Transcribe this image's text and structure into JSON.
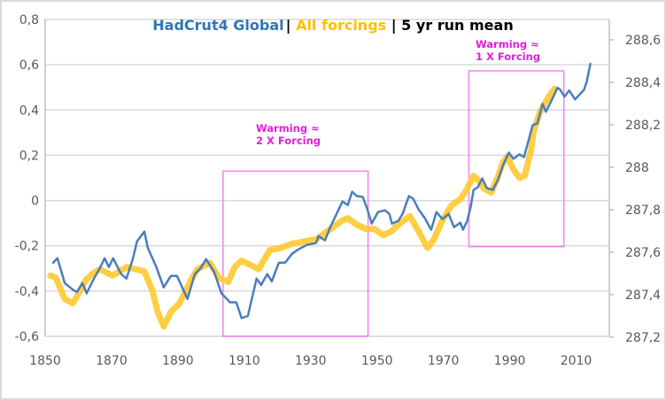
{
  "chart_data": {
    "type": "line",
    "title": {
      "parts": [
        {
          "text": "HadCrut4 Global",
          "color": "#2E75B6"
        },
        {
          "text": "| ",
          "color": "#000000"
        },
        {
          "text": "All forcings",
          "color": "#FFC000"
        },
        {
          "text": " | 5 yr run mean",
          "color": "#000000"
        }
      ]
    },
    "xlabel": "",
    "ylabel_left": "",
    "ylabel_right": "",
    "xlim": [
      1850,
      2020
    ],
    "ylim_left": [
      -0.6,
      0.8
    ],
    "ylim_right": [
      287.2,
      288.6
    ],
    "x_ticks": [
      "1850",
      "1870",
      "1890",
      "1910",
      "1930",
      "1950",
      "1970",
      "1990",
      "2010"
    ],
    "y_ticks_left": [
      "0,8",
      "0,6",
      "0,4",
      "0,2",
      "0",
      "-0,2",
      "-0,4",
      "-0,6"
    ],
    "y_ticks_right": [
      "288,6",
      "288,4",
      "288,2",
      "288",
      "287,8",
      "287,6",
      "287,4",
      "287,2"
    ],
    "grid": true,
    "series": [
      {
        "name": "HadCrut4 Global",
        "axis": "left",
        "color": "#4A7EBB",
        "x": [
          1852.4,
          1853.7,
          1855.9,
          1858.5,
          1859.6,
          1861.2,
          1862.5,
          1864.4,
          1866.5,
          1867.9,
          1869.2,
          1870.5,
          1872.9,
          1874.5,
          1876.4,
          1877.7,
          1879.9,
          1880.9,
          1883.6,
          1885.7,
          1887.9,
          1889.7,
          1892.9,
          1895.1,
          1896.9,
          1898.5,
          1900.9,
          1903.1,
          1905.7,
          1907.6,
          1909.2,
          1911.1,
          1913.7,
          1915.1,
          1916.9,
          1918.3,
          1920.4,
          1922.3,
          1924.4,
          1926.3,
          1928.9,
          1931.6,
          1932.4,
          1934.3,
          1935.9,
          1937.7,
          1939.6,
          1941.2,
          1942.5,
          1943.9,
          1945.7,
          1947.1,
          1948.4,
          1950.3,
          1952.4,
          1953.7,
          1954.5,
          1956.4,
          1957.7,
          1959.6,
          1960.9,
          1962.5,
          1964.4,
          1966.3,
          1967.9,
          1969.7,
          1971.6,
          1973.2,
          1975.1,
          1975.9,
          1977.2,
          1978.3,
          1979.1,
          1980.4,
          1981.7,
          1983.1,
          1984.9,
          1986.5,
          1987.9,
          1989.7,
          1991.1,
          1992.9,
          1994.3,
          1995.6,
          1996.9,
          1998.3,
          1999.9,
          2000.9,
          2002.5,
          2004.4,
          2005.2,
          2006.5,
          2007.9,
          2009.7,
          2012.4,
          2013.2,
          2014.3
        ],
        "y": [
          -0.275,
          -0.255,
          -0.365,
          -0.396,
          -0.404,
          -0.365,
          -0.41,
          -0.353,
          -0.298,
          -0.255,
          -0.294,
          -0.255,
          -0.325,
          -0.345,
          -0.259,
          -0.18,
          -0.137,
          -0.208,
          -0.298,
          -0.384,
          -0.333,
          -0.333,
          -0.435,
          -0.325,
          -0.298,
          -0.259,
          -0.314,
          -0.41,
          -0.45,
          -0.45,
          -0.52,
          -0.51,
          -0.345,
          -0.373,
          -0.325,
          -0.357,
          -0.275,
          -0.275,
          -0.235,
          -0.216,
          -0.196,
          -0.188,
          -0.157,
          -0.176,
          -0.118,
          -0.063,
          -0.004,
          -0.02,
          0.039,
          0.02,
          0.016,
          -0.039,
          -0.102,
          -0.051,
          -0.043,
          -0.059,
          -0.102,
          -0.09,
          -0.059,
          0.02,
          0.008,
          -0.039,
          -0.078,
          -0.129,
          -0.051,
          -0.082,
          -0.059,
          -0.118,
          -0.098,
          -0.129,
          -0.09,
          -0.024,
          0.047,
          0.059,
          0.098,
          0.055,
          0.047,
          0.094,
          0.153,
          0.212,
          0.184,
          0.204,
          0.192,
          0.263,
          0.333,
          0.341,
          0.427,
          0.392,
          0.439,
          0.498,
          0.49,
          0.459,
          0.486,
          0.447,
          0.49,
          0.525,
          0.604
        ]
      },
      {
        "name": "All forcings",
        "axis": "right",
        "color": "#FFC92F",
        "x": [
          1851.6,
          1853.2,
          1855.9,
          1858.3,
          1859.9,
          1862.3,
          1864.4,
          1866.5,
          1870.3,
          1874.5,
          1879.9,
          1882.3,
          1883.9,
          1885.7,
          1887.9,
          1890.5,
          1894.3,
          1895.9,
          1899.6,
          1902.3,
          1905.2,
          1907.1,
          1909.2,
          1911.9,
          1914.3,
          1917.7,
          1920.9,
          1924.4,
          1927.9,
          1931.6,
          1934.3,
          1936.9,
          1939.6,
          1941.2,
          1943.9,
          1946.5,
          1949.2,
          1951.9,
          1954.5,
          1956.4,
          1959.9,
          1962.5,
          1965.2,
          1967.1,
          1969.7,
          1972.4,
          1975.1,
          1977.2,
          1979.1,
          1980.4,
          1982.3,
          1984.4,
          1986.3,
          1987.9,
          1989.2,
          1991.1,
          1992.9,
          1994.5,
          1996.4,
          1997.2,
          1999.1,
          2000.9,
          2002.5,
          2003.5
        ],
        "y": [
          287.49,
          287.48,
          287.38,
          287.36,
          287.4,
          287.47,
          287.5,
          287.52,
          287.49,
          287.53,
          287.51,
          287.42,
          287.32,
          287.25,
          287.32,
          287.36,
          287.48,
          287.52,
          287.55,
          287.48,
          287.46,
          287.53,
          287.56,
          287.54,
          287.52,
          287.61,
          287.62,
          287.64,
          287.65,
          287.66,
          287.69,
          287.72,
          287.75,
          287.76,
          287.73,
          287.71,
          287.71,
          287.68,
          287.7,
          287.73,
          287.77,
          287.7,
          287.62,
          287.66,
          287.75,
          287.82,
          287.85,
          287.9,
          287.96,
          287.94,
          287.9,
          287.88,
          287.95,
          288.02,
          288.05,
          287.99,
          287.95,
          287.96,
          288.08,
          288.17,
          288.26,
          288.31,
          288.35,
          288.37
        ]
      }
    ],
    "annotations": [
      {
        "lines": [
          "Warming ≈",
          "2 X Forcing"
        ],
        "color": "#E61CDC",
        "box_x": [
          1903.6,
          1947.3
        ],
        "box_y": [
          -0.6,
          0.13
        ]
      },
      {
        "lines": [
          "Warming ≈",
          "1 X Forcing"
        ],
        "color": "#E61CDC",
        "box_x": [
          1977.7,
          2006.3
        ],
        "box_y": [
          -0.204,
          0.573
        ]
      }
    ]
  },
  "colors": {
    "grid": "#d9d9d9",
    "axis": "#bfbfbf",
    "box_stroke": "#EE82EE"
  }
}
